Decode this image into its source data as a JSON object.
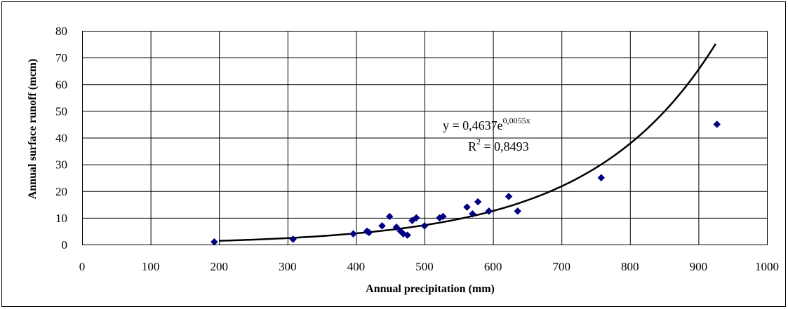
{
  "chart_data": {
    "type": "scatter",
    "xlabel": "Annual precipitation (mm)",
    "ylabel": "Annual surface runoff (mcm)",
    "xlim": [
      0,
      1000
    ],
    "ylim": [
      0,
      80
    ],
    "x_ticks": [
      0,
      100,
      200,
      300,
      400,
      500,
      600,
      700,
      800,
      900,
      1000
    ],
    "y_ticks": [
      0,
      10,
      20,
      30,
      40,
      50,
      60,
      70,
      80
    ],
    "grid": true,
    "marker_color": "#000080",
    "trendline_color": "#000000",
    "series": [
      {
        "points": [
          {
            "x": 193,
            "y": 1.0
          },
          {
            "x": 308,
            "y": 2.0
          },
          {
            "x": 396,
            "y": 4.0
          },
          {
            "x": 416,
            "y": 5.0
          },
          {
            "x": 419,
            "y": 4.5
          },
          {
            "x": 438,
            "y": 7.0
          },
          {
            "x": 449,
            "y": 10.5
          },
          {
            "x": 459,
            "y": 6.5
          },
          {
            "x": 465,
            "y": 5.0
          },
          {
            "x": 469,
            "y": 4.0
          },
          {
            "x": 475,
            "y": 3.5
          },
          {
            "x": 482,
            "y": 9.0
          },
          {
            "x": 488,
            "y": 10.0
          },
          {
            "x": 500,
            "y": 7.0
          },
          {
            "x": 522,
            "y": 10.0
          },
          {
            "x": 527,
            "y": 10.5
          },
          {
            "x": 562,
            "y": 14.0
          },
          {
            "x": 570,
            "y": 11.5
          },
          {
            "x": 578,
            "y": 16.0
          },
          {
            "x": 594,
            "y": 12.5
          },
          {
            "x": 623,
            "y": 18.0
          },
          {
            "x": 636,
            "y": 12.5
          },
          {
            "x": 758,
            "y": 25.0
          },
          {
            "x": 927,
            "y": 45.0
          }
        ]
      }
    ],
    "trendline": {
      "type": "exponential",
      "a": 0.4637,
      "b": 0.0055,
      "x_range": [
        200,
        925
      ],
      "equation_base": "y = 0,4637e",
      "equation_exponent": "0,0055x",
      "r2_base": "R",
      "r2_exponent": "2",
      "r2_rest": " = 0,8493"
    }
  }
}
